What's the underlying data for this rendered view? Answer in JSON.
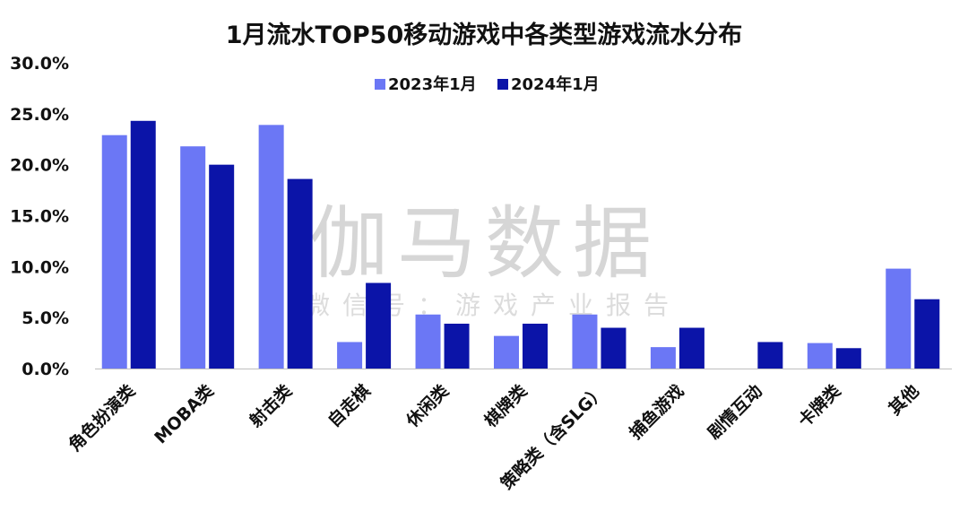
{
  "chart_data": {
    "type": "bar",
    "title": "1月流水TOP50移动游戏中各类型游戏流水分布",
    "xlabel": "",
    "ylabel": "",
    "ylim": [
      0,
      30
    ],
    "yticks": [
      "0.0%",
      "5.0%",
      "10.0%",
      "15.0%",
      "20.0%",
      "25.0%",
      "30.0%"
    ],
    "ytick_values": [
      0,
      5,
      10,
      15,
      20,
      25,
      30
    ],
    "categories": [
      "角色扮演类",
      "MOBA类",
      "射击类",
      "自走棋",
      "休闲类",
      "棋牌类",
      "策略类（含SLG）",
      "捕鱼游戏",
      "剧情互动",
      "卡牌类",
      "其他"
    ],
    "series": [
      {
        "name": "2023年1月",
        "color": "#6b77f5",
        "values": [
          22.9,
          21.8,
          23.9,
          2.6,
          5.3,
          3.2,
          5.3,
          2.1,
          0,
          2.5,
          9.8
        ]
      },
      {
        "name": "2024年1月",
        "color": "#0b14a8",
        "values": [
          24.3,
          20.0,
          18.6,
          8.4,
          4.4,
          4.4,
          4.0,
          4.0,
          2.6,
          2.0,
          6.8
        ]
      }
    ],
    "legend_position": "top-center",
    "grid": false
  },
  "watermark": {
    "main": "伽马数据",
    "sub": "微信号：游戏产业报告"
  }
}
